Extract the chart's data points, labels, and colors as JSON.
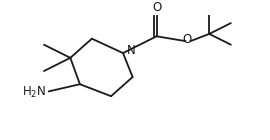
{
  "bg_color": "#ffffff",
  "line_color": "#1a1a1a",
  "line_width": 1.3,
  "font_size": 8.5,
  "fig_width": 2.7,
  "fig_height": 1.4,
  "dpi": 100,
  "xlim": [
    0,
    10
  ],
  "ylim": [
    0,
    5.2
  ]
}
